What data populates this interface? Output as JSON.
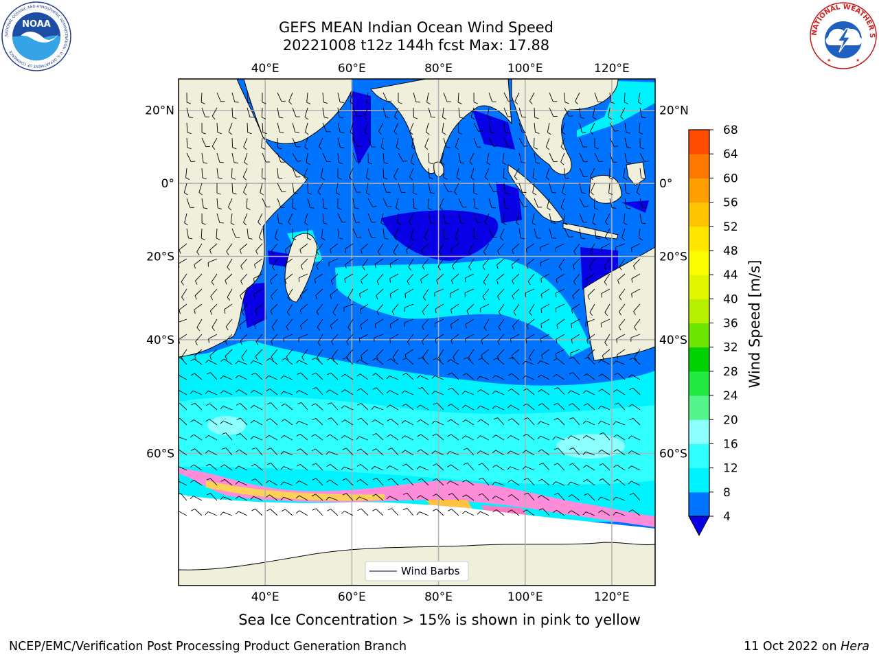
{
  "title": {
    "line1": "GEFS MEAN Indian Ocean Wind Speed",
    "line2": "20221008 t12z 144h fcst   Max: 17.88"
  },
  "logos": {
    "left": {
      "name": "noaa-logo",
      "text": "NOAA",
      "ring": "NATIONAL OCEANIC AND ATMOSPHERIC ADMINISTRATION · U.S. DEPARTMENT OF COMMERCE"
    },
    "right": {
      "name": "national-weather-service-logo",
      "ring": "NATIONAL WEATHER SERVICE"
    }
  },
  "map": {
    "extent": {
      "lon_min": 20,
      "lon_max": 130,
      "lat_min": -74,
      "lat_max": 28
    },
    "lon_ticks": [
      40,
      60,
      80,
      100,
      120
    ],
    "lon_tick_labels": [
      "40°E",
      "60°E",
      "80°E",
      "100°E",
      "120°E"
    ],
    "lat_ticks": [
      20,
      0,
      -20,
      -40,
      -60
    ],
    "lat_tick_labels": [
      "20°N",
      "0°",
      "20°S",
      "40°S",
      "60°S"
    ],
    "grid": true,
    "land_color": "#efefdc",
    "legend_label": "Wind Barbs",
    "legend_placement": "bottom-center"
  },
  "colorbar": {
    "label": "Wind Speed [m/s]",
    "ticks": [
      "4",
      "8",
      "12",
      "16",
      "20",
      "24",
      "28",
      "32",
      "36",
      "40",
      "44",
      "48",
      "52",
      "56",
      "60",
      "64",
      "68"
    ],
    "colors": [
      "#0074ff",
      "#00f2ff",
      "#30ffff",
      "#8cffff",
      "#55f58c",
      "#23e841",
      "#00d100",
      "#6ee500",
      "#b6ef00",
      "#e0f700",
      "#fbfc00",
      "#ffe600",
      "#ffc300",
      "#ffa000",
      "#ff7800",
      "#ff4c00"
    ],
    "under_color": "#0a00e6",
    "extend": "min"
  },
  "legend_colors": {
    "wind_4_8": "#0074ff",
    "wind_8_12": "#00f2ff",
    "wind_12_16": "#30ffff",
    "wind_16_20": "#8cffff",
    "wind_under_4": "#0a00e6"
  },
  "sea_ice_caption": "Sea Ice Concentration > 15% is shown in pink to yellow",
  "footer": {
    "left": "NCEP/EMC/Verification Post Processing Product Generation Branch",
    "right_prefix": "11 Oct 2022 on ",
    "right_host": "Hera"
  }
}
